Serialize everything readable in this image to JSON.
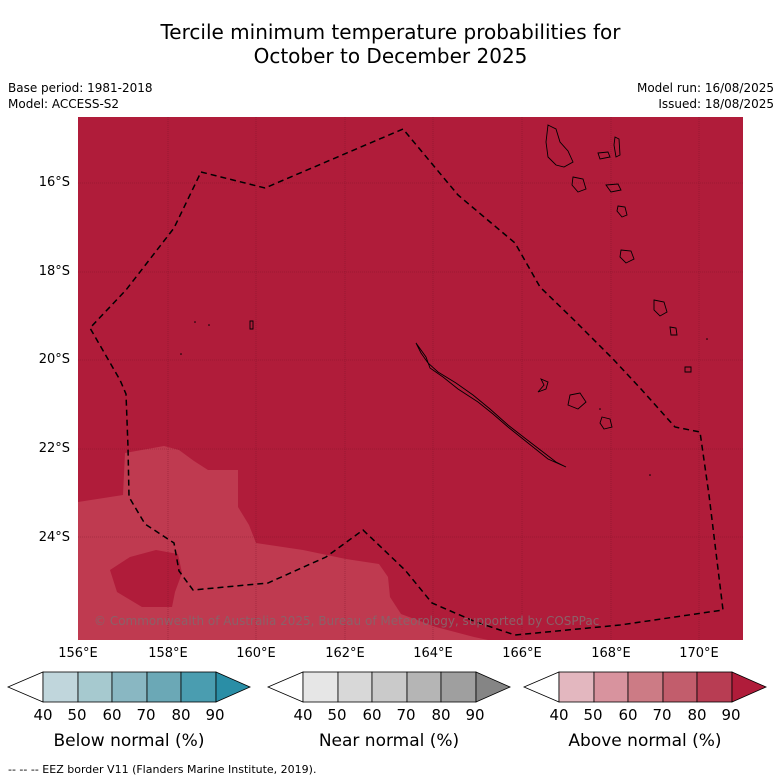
{
  "title_line1": "Tercile minimum temperature probabilities for",
  "title_line2": "October to December 2025",
  "meta": {
    "base_period": "Base period: 1981-2018",
    "model": "Model: ACCESS-S2",
    "model_run": "Model run: 16/08/2025",
    "issued": "Issued: 18/08/2025"
  },
  "lat_labels": [
    "16°S",
    "18°S",
    "20°S",
    "22°S",
    "24°S"
  ],
  "lon_labels": [
    "156°E",
    "158°E",
    "160°E",
    "162°E",
    "164°E",
    "166°E",
    "168°E",
    "170°E"
  ],
  "copyright": "© Commonwealth of Australia 2025, Bureau of Meteorology, supported by COSPPac",
  "colorbars": [
    {
      "label": "Below normal (%)",
      "ticks": [
        "40",
        "50",
        "60",
        "70",
        "80",
        "90"
      ],
      "colors": [
        "#ffffff",
        "#c0d6dc",
        "#a6c9cf",
        "#89b7c2",
        "#6ba8b6",
        "#4a9db0",
        "#2a8ea6"
      ]
    },
    {
      "label": "Near normal (%)",
      "ticks": [
        "40",
        "50",
        "60",
        "70",
        "80",
        "90"
      ],
      "colors": [
        "#ffffff",
        "#e6e6e6",
        "#d8d8d8",
        "#cacaca",
        "#b5b5b5",
        "#9f9f9f",
        "#858585"
      ]
    },
    {
      "label": "Above normal (%)",
      "ticks": [
        "40",
        "50",
        "60",
        "70",
        "80",
        "90"
      ],
      "colors": [
        "#ffffff",
        "#e3b7bf",
        "#d8939e",
        "#cc7b85",
        "#c25d6c",
        "#b83d53",
        "#b01c3a"
      ]
    }
  ],
  "map_colors": {
    "high": "#b01c3a",
    "moderate": "#bf3a50"
  },
  "footer": "--  --  -- EEZ border V11 (Flanders Marine Institute, 2019)."
}
